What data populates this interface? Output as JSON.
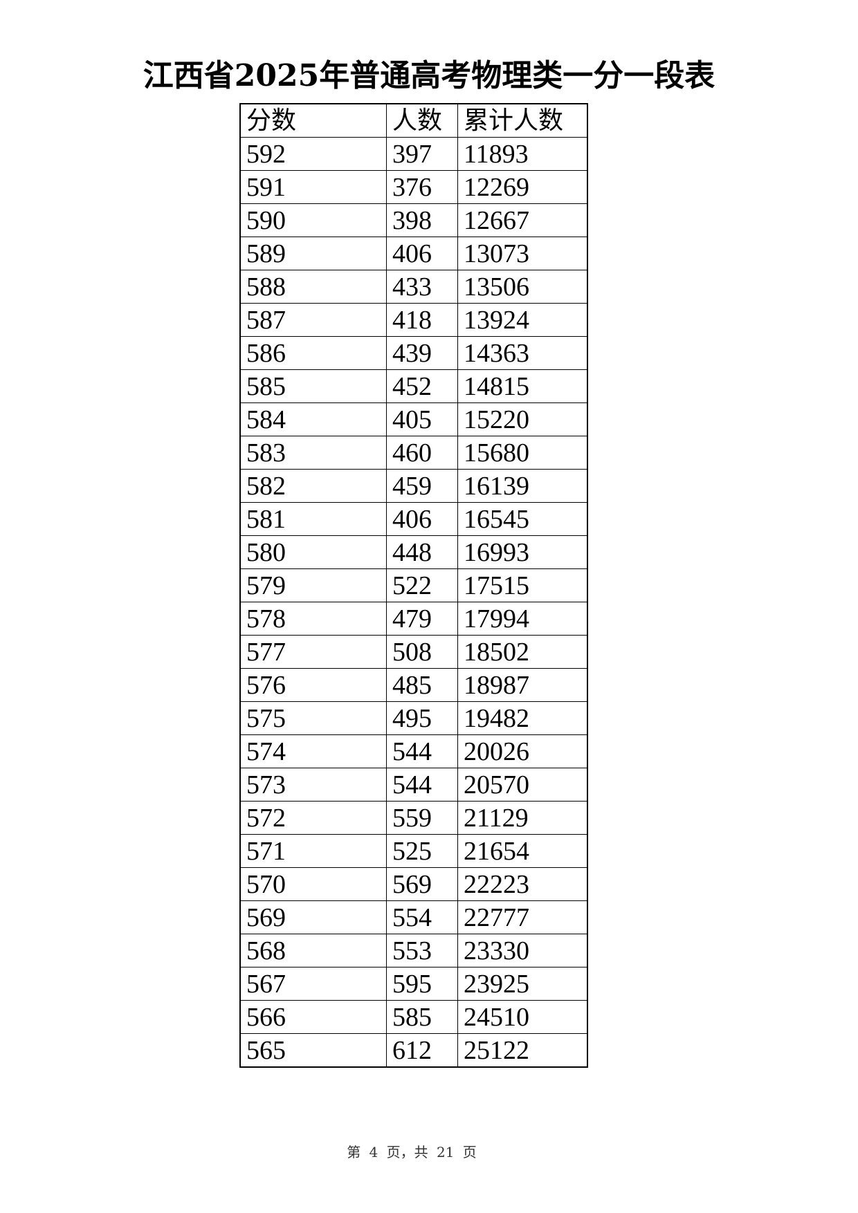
{
  "title": "江西省2025年普通高考物理类一分一段表",
  "table": {
    "headers": [
      "分数",
      "人数",
      "累计人数"
    ],
    "rows": [
      [
        "592",
        "397",
        "11893"
      ],
      [
        "591",
        "376",
        "12269"
      ],
      [
        "590",
        "398",
        "12667"
      ],
      [
        "589",
        "406",
        "13073"
      ],
      [
        "588",
        "433",
        "13506"
      ],
      [
        "587",
        "418",
        "13924"
      ],
      [
        "586",
        "439",
        "14363"
      ],
      [
        "585",
        "452",
        "14815"
      ],
      [
        "584",
        "405",
        "15220"
      ],
      [
        "583",
        "460",
        "15680"
      ],
      [
        "582",
        "459",
        "16139"
      ],
      [
        "581",
        "406",
        "16545"
      ],
      [
        "580",
        "448",
        "16993"
      ],
      [
        "579",
        "522",
        "17515"
      ],
      [
        "578",
        "479",
        "17994"
      ],
      [
        "577",
        "508",
        "18502"
      ],
      [
        "576",
        "485",
        "18987"
      ],
      [
        "575",
        "495",
        "19482"
      ],
      [
        "574",
        "544",
        "20026"
      ],
      [
        "573",
        "544",
        "20570"
      ],
      [
        "572",
        "559",
        "21129"
      ],
      [
        "571",
        "525",
        "21654"
      ],
      [
        "570",
        "569",
        "22223"
      ],
      [
        "569",
        "554",
        "22777"
      ],
      [
        "568",
        "553",
        "23330"
      ],
      [
        "567",
        "595",
        "23925"
      ],
      [
        "566",
        "585",
        "24510"
      ],
      [
        "565",
        "612",
        "25122"
      ]
    ]
  },
  "footer": "第 4 页，共 21 页"
}
